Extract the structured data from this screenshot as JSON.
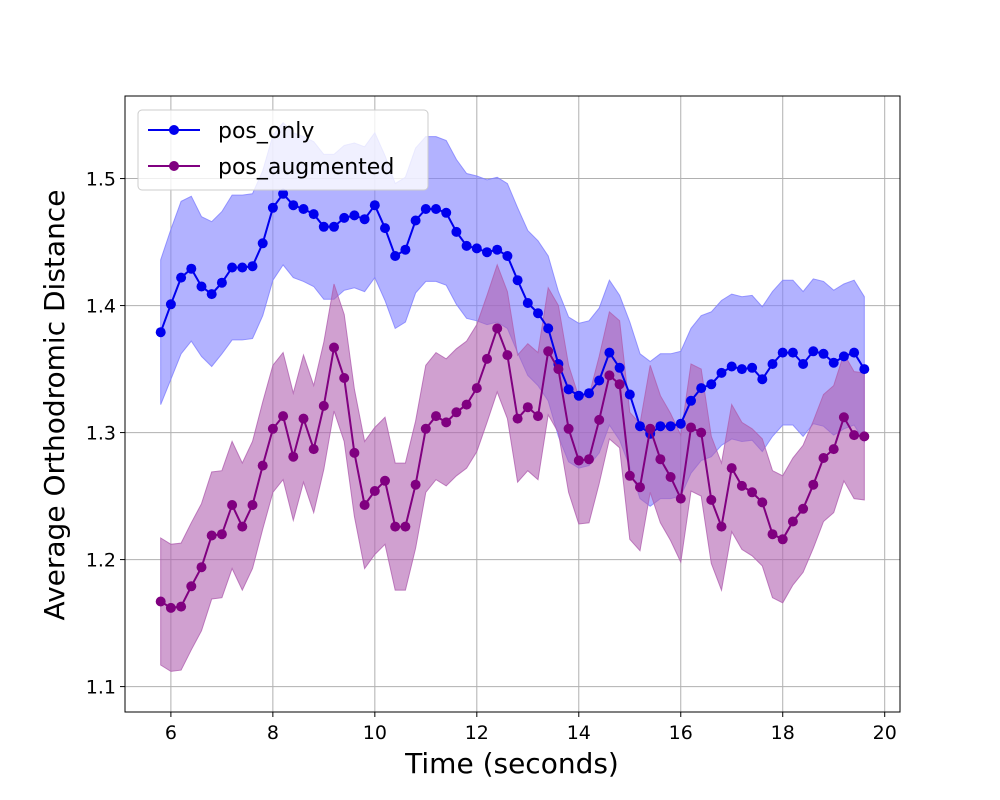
{
  "chart_data": {
    "type": "line",
    "title": "",
    "xlabel": "Time (seconds)",
    "ylabel": "Average Orthodromic Distance",
    "xlim": [
      5.1,
      20.3
    ],
    "ylim": [
      1.08,
      1.565
    ],
    "xticks": [
      6,
      8,
      10,
      12,
      14,
      16,
      18,
      20
    ],
    "yticks": [
      1.1,
      1.2,
      1.3,
      1.4,
      1.5
    ],
    "grid": true,
    "legend_position": "top-left",
    "x": [
      5.8,
      6.0,
      6.2,
      6.4,
      6.6,
      6.8,
      7.0,
      7.2,
      7.4,
      7.6,
      7.8,
      8.0,
      8.2,
      8.4,
      8.6,
      8.8,
      9.0,
      9.2,
      9.4,
      9.6,
      9.8,
      10.0,
      10.2,
      10.4,
      10.6,
      10.8,
      11.0,
      11.2,
      11.4,
      11.6,
      11.8,
      12.0,
      12.2,
      12.4,
      12.6,
      12.8,
      13.0,
      13.2,
      13.4,
      13.6,
      13.8,
      14.0,
      14.2,
      14.4,
      14.6,
      14.8,
      15.0,
      15.2,
      15.4,
      15.6,
      15.8,
      16.0,
      16.2,
      16.4,
      16.6,
      16.8,
      17.0,
      17.2,
      17.4,
      17.6,
      17.8,
      18.0,
      18.2,
      18.4,
      18.6,
      18.8,
      19.0,
      19.2,
      19.4,
      19.6
    ],
    "series": [
      {
        "name": "pos_only",
        "color": "#0000ee",
        "band_color": "#7f7fff",
        "values": [
          1.379,
          1.401,
          1.422,
          1.429,
          1.415,
          1.409,
          1.418,
          1.43,
          1.43,
          1.431,
          1.449,
          1.477,
          1.488,
          1.479,
          1.476,
          1.472,
          1.462,
          1.462,
          1.469,
          1.471,
          1.468,
          1.479,
          1.461,
          1.439,
          1.444,
          1.467,
          1.476,
          1.476,
          1.473,
          1.458,
          1.447,
          1.445,
          1.442,
          1.444,
          1.439,
          1.42,
          1.402,
          1.394,
          1.382,
          1.354,
          1.334,
          1.329,
          1.331,
          1.341,
          1.363,
          1.351,
          1.33,
          1.305,
          1.299,
          1.305,
          1.305,
          1.307,
          1.325,
          1.335,
          1.338,
          1.347,
          1.352,
          1.35,
          1.351,
          1.342,
          1.354,
          1.363,
          1.363,
          1.354,
          1.364,
          1.362,
          1.355,
          1.36,
          1.363,
          1.35
        ],
        "lower": [
          1.322,
          1.342,
          1.362,
          1.372,
          1.36,
          1.352,
          1.362,
          1.373,
          1.373,
          1.374,
          1.392,
          1.42,
          1.432,
          1.422,
          1.419,
          1.415,
          1.405,
          1.405,
          1.412,
          1.414,
          1.411,
          1.422,
          1.404,
          1.382,
          1.387,
          1.41,
          1.419,
          1.419,
          1.416,
          1.401,
          1.39,
          1.388,
          1.385,
          1.387,
          1.382,
          1.363,
          1.345,
          1.337,
          1.325,
          1.297,
          1.277,
          1.272,
          1.274,
          1.284,
          1.306,
          1.294,
          1.273,
          1.248,
          1.242,
          1.248,
          1.248,
          1.25,
          1.268,
          1.278,
          1.281,
          1.29,
          1.295,
          1.293,
          1.294,
          1.285,
          1.297,
          1.306,
          1.306,
          1.297,
          1.307,
          1.305,
          1.298,
          1.303,
          1.306,
          1.293
        ],
        "upper": [
          1.436,
          1.46,
          1.482,
          1.486,
          1.47,
          1.466,
          1.474,
          1.487,
          1.487,
          1.488,
          1.506,
          1.534,
          1.544,
          1.536,
          1.533,
          1.529,
          1.519,
          1.519,
          1.526,
          1.528,
          1.525,
          1.536,
          1.518,
          1.496,
          1.501,
          1.524,
          1.533,
          1.533,
          1.53,
          1.515,
          1.504,
          1.502,
          1.499,
          1.501,
          1.496,
          1.477,
          1.459,
          1.451,
          1.439,
          1.411,
          1.391,
          1.386,
          1.388,
          1.398,
          1.42,
          1.408,
          1.387,
          1.362,
          1.356,
          1.362,
          1.362,
          1.364,
          1.382,
          1.392,
          1.395,
          1.404,
          1.409,
          1.407,
          1.408,
          1.399,
          1.411,
          1.42,
          1.42,
          1.411,
          1.421,
          1.419,
          1.412,
          1.417,
          1.42,
          1.407
        ]
      },
      {
        "name": "pos_augmented",
        "color": "#800080",
        "band_color": "#b060b0",
        "values": [
          1.167,
          1.162,
          1.163,
          1.179,
          1.194,
          1.219,
          1.22,
          1.243,
          1.226,
          1.243,
          1.274,
          1.303,
          1.313,
          1.281,
          1.311,
          1.287,
          1.321,
          1.367,
          1.343,
          1.284,
          1.243,
          1.254,
          1.262,
          1.226,
          1.226,
          1.259,
          1.303,
          1.313,
          1.308,
          1.316,
          1.322,
          1.335,
          1.358,
          1.382,
          1.361,
          1.311,
          1.32,
          1.313,
          1.364,
          1.35,
          1.303,
          1.278,
          1.279,
          1.31,
          1.345,
          1.338,
          1.266,
          1.257,
          1.303,
          1.279,
          1.265,
          1.248,
          1.304,
          1.3,
          1.247,
          1.226,
          1.272,
          1.258,
          1.253,
          1.245,
          1.22,
          1.216,
          1.23,
          1.24,
          1.259,
          1.28,
          1.287,
          1.312,
          1.298,
          1.297
        ],
        "lower": [
          1.117,
          1.112,
          1.113,
          1.129,
          1.144,
          1.169,
          1.17,
          1.193,
          1.176,
          1.193,
          1.224,
          1.253,
          1.263,
          1.231,
          1.261,
          1.237,
          1.271,
          1.317,
          1.293,
          1.234,
          1.193,
          1.204,
          1.212,
          1.176,
          1.176,
          1.209,
          1.253,
          1.263,
          1.258,
          1.266,
          1.272,
          1.285,
          1.308,
          1.332,
          1.311,
          1.261,
          1.27,
          1.263,
          1.314,
          1.3,
          1.253,
          1.228,
          1.229,
          1.26,
          1.295,
          1.288,
          1.216,
          1.207,
          1.253,
          1.229,
          1.215,
          1.198,
          1.254,
          1.25,
          1.197,
          1.176,
          1.222,
          1.208,
          1.203,
          1.195,
          1.17,
          1.166,
          1.18,
          1.19,
          1.209,
          1.23,
          1.237,
          1.262,
          1.248,
          1.247
        ],
        "upper": [
          1.217,
          1.212,
          1.213,
          1.229,
          1.244,
          1.269,
          1.27,
          1.293,
          1.276,
          1.293,
          1.324,
          1.353,
          1.363,
          1.331,
          1.361,
          1.337,
          1.371,
          1.417,
          1.393,
          1.334,
          1.293,
          1.304,
          1.312,
          1.276,
          1.276,
          1.309,
          1.353,
          1.363,
          1.358,
          1.366,
          1.372,
          1.385,
          1.408,
          1.432,
          1.411,
          1.361,
          1.37,
          1.363,
          1.414,
          1.4,
          1.353,
          1.328,
          1.329,
          1.36,
          1.395,
          1.388,
          1.316,
          1.307,
          1.353,
          1.329,
          1.315,
          1.298,
          1.354,
          1.35,
          1.297,
          1.276,
          1.322,
          1.308,
          1.303,
          1.295,
          1.27,
          1.266,
          1.28,
          1.29,
          1.309,
          1.33,
          1.337,
          1.362,
          1.348,
          1.347
        ]
      }
    ]
  }
}
